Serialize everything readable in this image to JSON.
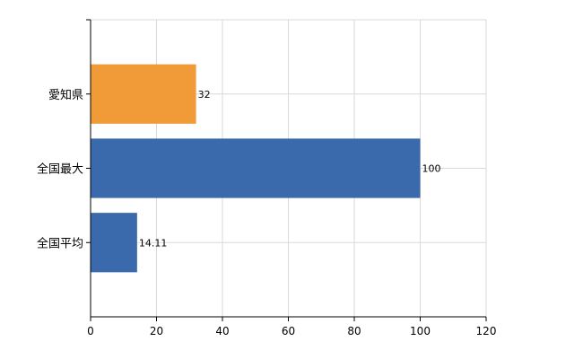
{
  "chart_data": {
    "type": "bar",
    "orientation": "horizontal",
    "categories": [
      "愛知県",
      "全国最大",
      "全国平均"
    ],
    "values": [
      32,
      100,
      14.11
    ],
    "data_labels": [
      "32",
      "100",
      "14.11"
    ],
    "xticks": [
      0,
      20,
      40,
      60,
      80,
      100,
      120
    ],
    "xlim": [
      0,
      120
    ],
    "grid": true,
    "legend": "none",
    "colors": [
      "#F09A38",
      "#3A6AAB",
      "#3A6AAB"
    ]
  }
}
